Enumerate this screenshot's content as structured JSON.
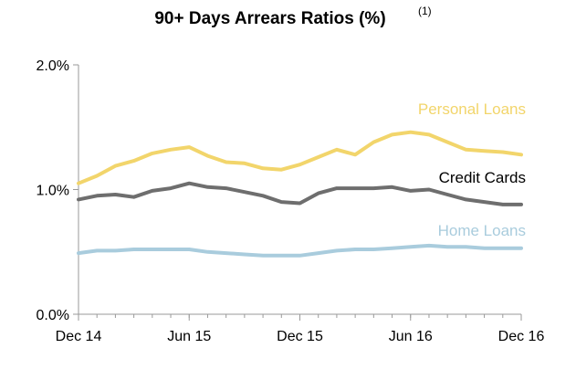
{
  "chart_data": {
    "type": "line",
    "title": "90+ Days Arrears Ratios (%)",
    "title_note": "(1)",
    "xlabel": "",
    "ylabel": "",
    "x": [
      "Dec 14",
      "Jan 15",
      "Feb 15",
      "Mar 15",
      "Apr 15",
      "May 15",
      "Jun 15",
      "Jul 15",
      "Aug 15",
      "Sep 15",
      "Oct 15",
      "Nov 15",
      "Dec 15",
      "Jan 16",
      "Feb 16",
      "Mar 16",
      "Apr 16",
      "May 16",
      "Jun 16",
      "Jul 16",
      "Aug 16",
      "Sep 16",
      "Oct 16",
      "Nov 16",
      "Dec 16"
    ],
    "x_tick_labels": [
      {
        "index": 0,
        "label": "Dec 14"
      },
      {
        "index": 6,
        "label": "Jun 15"
      },
      {
        "index": 12,
        "label": "Dec 15"
      },
      {
        "index": 18,
        "label": "Jun 16"
      },
      {
        "index": 24,
        "label": "Dec 16"
      }
    ],
    "y_ticks": [
      {
        "value": 0.0,
        "label": "0.0%"
      },
      {
        "value": 1.0,
        "label": "1.0%"
      },
      {
        "value": 2.0,
        "label": "2.0%"
      }
    ],
    "ylim": [
      0,
      2.0
    ],
    "grid": false,
    "legend": "inline labels",
    "series": [
      {
        "name": "Personal Loans",
        "color": "#F2D56B",
        "values": [
          1.05,
          1.11,
          1.19,
          1.23,
          1.29,
          1.32,
          1.34,
          1.27,
          1.22,
          1.21,
          1.17,
          1.16,
          1.2,
          1.26,
          1.32,
          1.28,
          1.38,
          1.44,
          1.46,
          1.44,
          1.38,
          1.32,
          1.31,
          1.3,
          1.28
        ]
      },
      {
        "name": "Credit Cards",
        "color": "#6E6E6E",
        "values": [
          0.92,
          0.95,
          0.96,
          0.94,
          0.99,
          1.01,
          1.05,
          1.02,
          1.01,
          0.98,
          0.95,
          0.9,
          0.89,
          0.97,
          1.01,
          1.01,
          1.01,
          1.02,
          0.99,
          1.0,
          0.96,
          0.92,
          0.9,
          0.88,
          0.88
        ]
      },
      {
        "name": "Home Loans",
        "color": "#A9CCDD",
        "values": [
          0.49,
          0.51,
          0.51,
          0.52,
          0.52,
          0.52,
          0.52,
          0.5,
          0.49,
          0.48,
          0.47,
          0.47,
          0.47,
          0.49,
          0.51,
          0.52,
          0.52,
          0.53,
          0.54,
          0.55,
          0.54,
          0.54,
          0.53,
          0.53,
          0.53
        ]
      }
    ]
  }
}
